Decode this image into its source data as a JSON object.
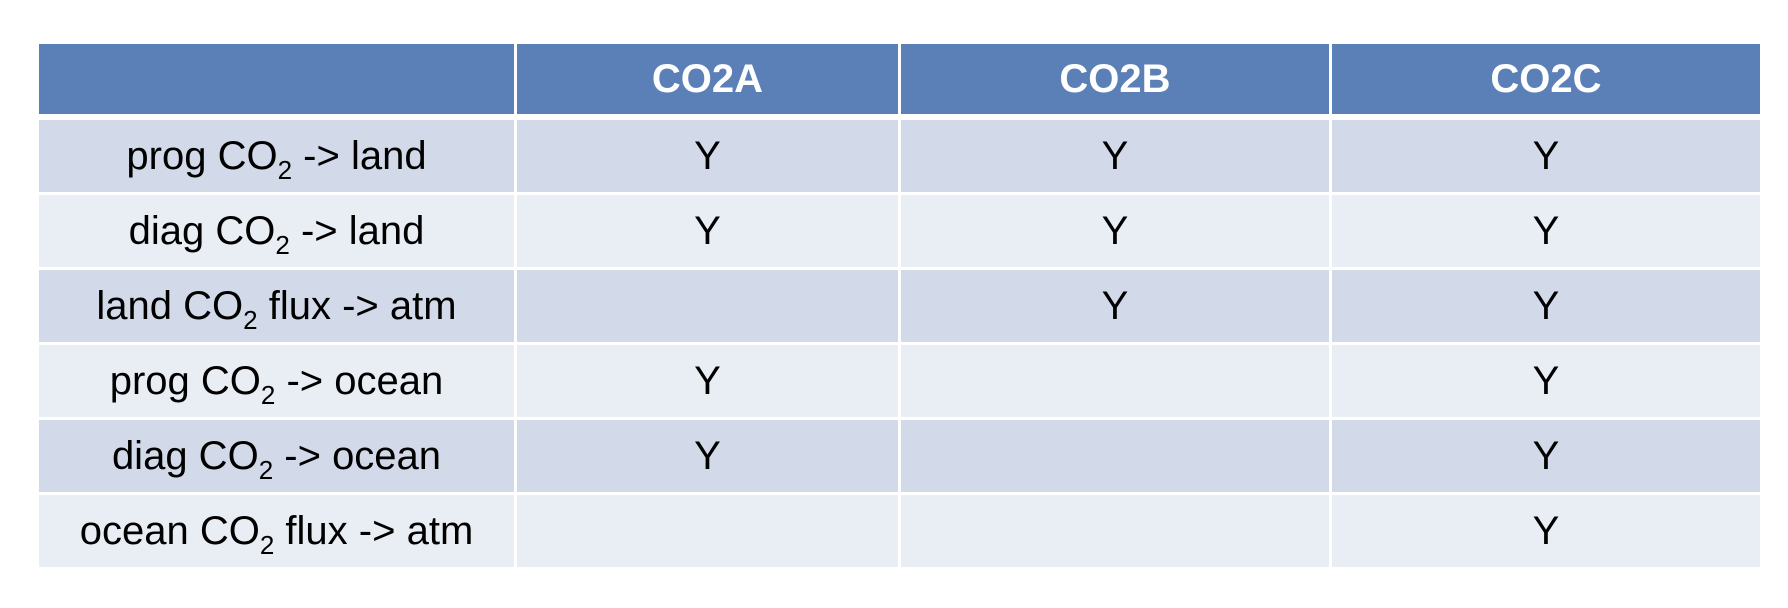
{
  "table": {
    "headers": [
      "",
      "CO2A",
      "CO2B",
      "CO2C"
    ],
    "rows": [
      {
        "pre": "prog CO",
        "sub": "2",
        "post": " -> land",
        "cells": [
          "Y",
          "Y",
          "Y"
        ]
      },
      {
        "pre": "diag CO",
        "sub": "2",
        "post": " -> land",
        "cells": [
          "Y",
          "Y",
          "Y"
        ]
      },
      {
        "pre": "land CO",
        "sub": "2",
        "post": " flux -> atm",
        "cells": [
          "",
          "Y",
          "Y"
        ]
      },
      {
        "pre": "prog CO",
        "sub": "2",
        "post": " -> ocean",
        "cells": [
          "Y",
          "",
          "Y"
        ]
      },
      {
        "pre": "diag CO",
        "sub": "2",
        "post": " -> ocean",
        "cells": [
          "Y",
          "",
          "Y"
        ]
      },
      {
        "pre": "ocean CO",
        "sub": "2",
        "post": " flux -> atm",
        "cells": [
          "",
          "",
          "Y"
        ]
      }
    ]
  },
  "colors": {
    "header_bg": "#5b80b8",
    "row_odd_bg": "#d2d9e8",
    "row_even_bg": "#e9edf4"
  }
}
